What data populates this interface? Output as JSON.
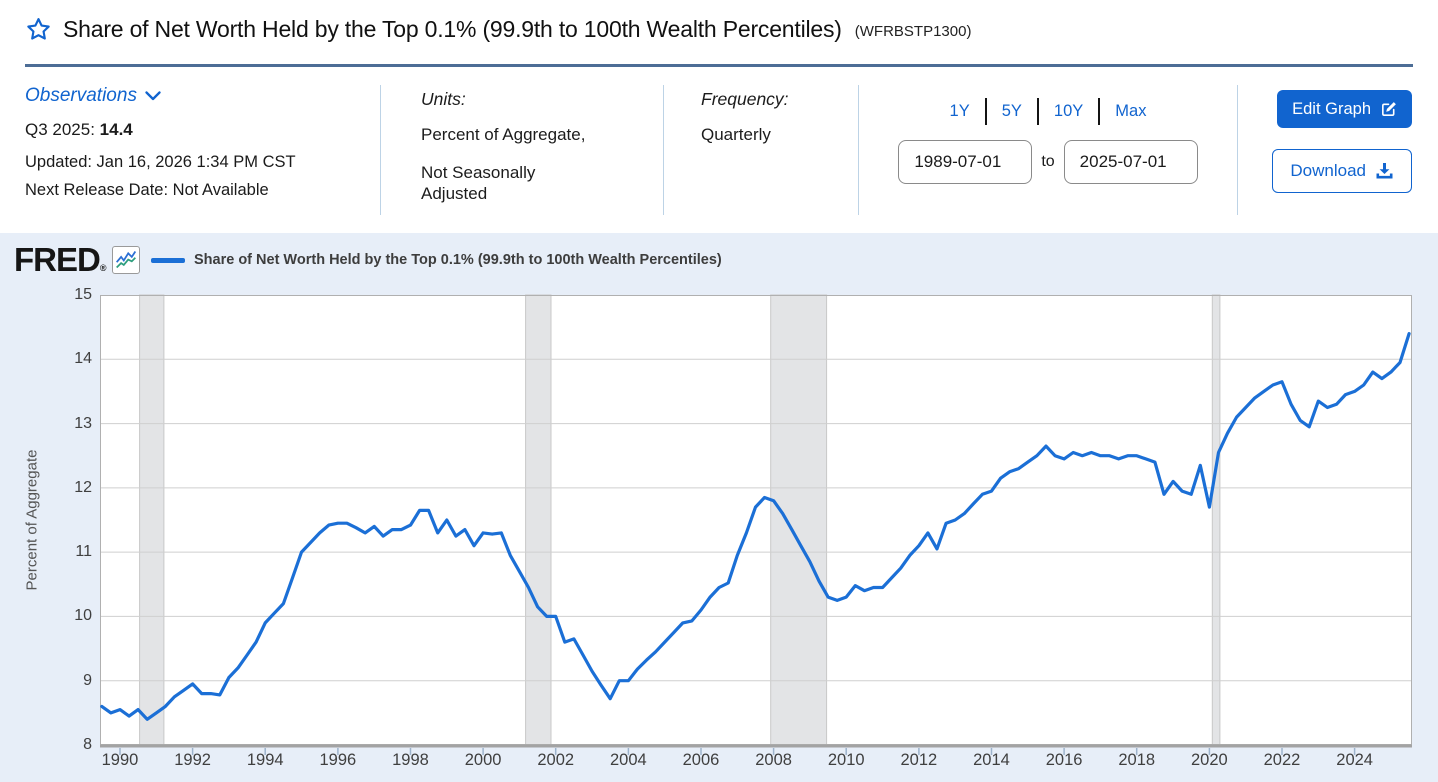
{
  "page": {
    "title": "Share of Net Worth Held by the Top 0.1% (99.9th to 100th Wealth Percentiles)",
    "series_id": "(WFRBSTP1300)"
  },
  "observations": {
    "label": "Observations",
    "period": "Q3 2025: ",
    "value": "14.4",
    "updated": "Updated: Jan 16, 2026 1:34 PM CST",
    "next_release": "Next Release Date: Not Available"
  },
  "units": {
    "label": "Units:",
    "line1": "Percent of Aggregate,",
    "line2": "Not Seasonally",
    "line3": "Adjusted"
  },
  "frequency": {
    "label": "Frequency:",
    "value": "Quarterly"
  },
  "range": {
    "presets": [
      "1Y",
      "5Y",
      "10Y",
      "Max"
    ],
    "start": "1989-07-01",
    "to_label": "to",
    "end": "2025-07-01"
  },
  "actions": {
    "edit": "Edit Graph",
    "download": "Download"
  },
  "brand": {
    "logo": "FRED",
    "reg": "®"
  },
  "colors": {
    "accent": "#1164cf",
    "line": "#1b6fd6",
    "panel_bg": "#e7eef8",
    "grid": "#cfcfcf",
    "plot_border": "#b0b0b0",
    "axis_line": "#a3a3a3",
    "tick": "#9db3cc",
    "recession_band_fill": "#e3e4e6",
    "recession_band_edge": "#c8c8c8",
    "header_rule": "#4d6d96"
  },
  "chart_data": {
    "type": "line",
    "title": "Share of Net Worth Held by the Top 0.1% (99.9th to 100th Wealth Percentiles)",
    "xlabel": "",
    "ylabel": "Percent of Aggregate",
    "ylim": [
      8,
      15
    ],
    "yticks": [
      8,
      9,
      10,
      11,
      12,
      13,
      14,
      15
    ],
    "xticks": [
      1990,
      1992,
      1994,
      1996,
      1998,
      2000,
      2002,
      2004,
      2006,
      2008,
      2010,
      2012,
      2014,
      2016,
      2018,
      2020,
      2022,
      2024
    ],
    "x_range": [
      1989.45,
      2025.58
    ],
    "grid": true,
    "legend_position": "top",
    "frequency": "Quarterly",
    "x_start": 1989.5,
    "x_step": 0.25,
    "values": [
      8.6,
      8.5,
      8.55,
      8.45,
      8.55,
      8.4,
      8.5,
      8.6,
      8.75,
      8.85,
      8.95,
      8.8,
      8.8,
      8.78,
      9.05,
      9.2,
      9.4,
      9.6,
      9.9,
      10.05,
      10.2,
      10.6,
      11.0,
      11.15,
      11.3,
      11.42,
      11.45,
      11.45,
      11.38,
      11.3,
      11.4,
      11.25,
      11.35,
      11.35,
      11.42,
      11.65,
      11.65,
      11.3,
      11.5,
      11.25,
      11.35,
      11.1,
      11.3,
      11.28,
      11.3,
      10.95,
      10.7,
      10.45,
      10.15,
      10.0,
      10.0,
      9.6,
      9.65,
      9.4,
      9.15,
      8.93,
      8.72,
      9.0,
      9.0,
      9.18,
      9.32,
      9.45,
      9.6,
      9.75,
      9.9,
      9.93,
      10.1,
      10.3,
      10.45,
      10.52,
      10.95,
      11.3,
      11.7,
      11.85,
      11.8,
      11.6,
      11.35,
      11.1,
      10.85,
      10.55,
      10.3,
      10.25,
      10.3,
      10.48,
      10.4,
      10.45,
      10.45,
      10.6,
      10.75,
      10.95,
      11.1,
      11.3,
      11.05,
      11.45,
      11.5,
      11.6,
      11.75,
      11.9,
      11.95,
      12.15,
      12.25,
      12.3,
      12.4,
      12.5,
      12.65,
      12.5,
      12.45,
      12.55,
      12.5,
      12.55,
      12.5,
      12.5,
      12.45,
      12.5,
      12.5,
      12.45,
      12.4,
      11.9,
      12.1,
      11.95,
      11.9,
      12.35,
      11.7,
      12.55,
      12.85,
      13.1,
      13.25,
      13.4,
      13.5,
      13.6,
      13.65,
      13.3,
      13.05,
      12.95,
      13.35,
      13.25,
      13.3,
      13.45,
      13.5,
      13.6,
      13.8,
      13.7,
      13.8,
      13.95,
      14.4
    ],
    "recession_bands": [
      [
        1990.54,
        1991.21
      ],
      [
        2001.17,
        2001.87
      ],
      [
        2007.92,
        2009.46
      ],
      [
        2020.08,
        2020.29
      ]
    ]
  }
}
